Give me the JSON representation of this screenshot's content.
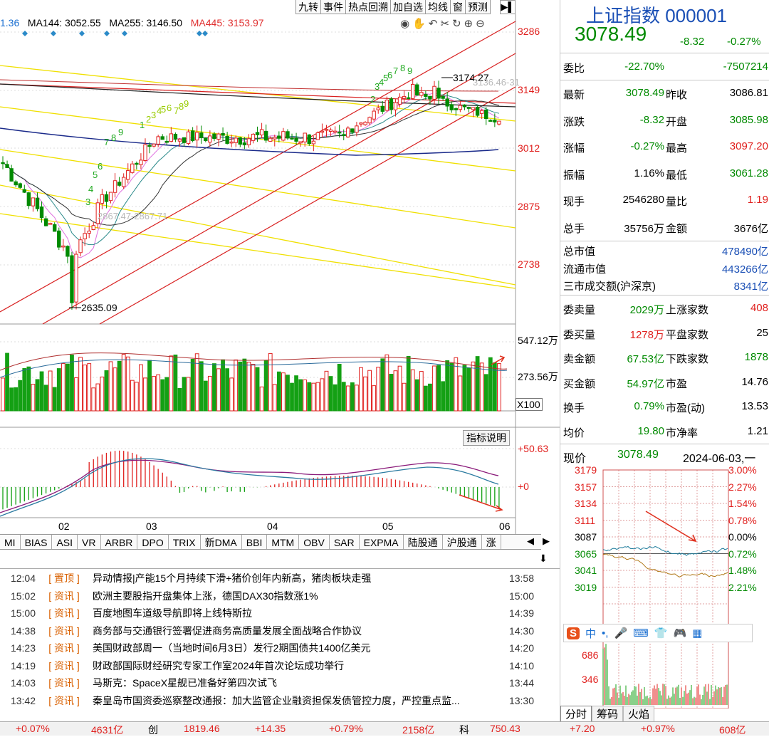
{
  "toolbar": {
    "buttons": [
      "九转",
      "事件",
      "热点回溯",
      "加自选",
      "均线",
      "窗",
      "预测"
    ]
  },
  "ma": {
    "ma_partial": "1.36",
    "ma144": "MA144: 3052.55",
    "ma255": "MA255: 3146.50",
    "ma445": "MA445: 3153.97"
  },
  "price_axis": [
    "3286",
    "3149",
    "3012",
    "2875",
    "2738"
  ],
  "annotations": {
    "high": "3174.27",
    "low": "2635.09",
    "gap1": "2867.47-2867.71",
    "gap2": "3136.46-31"
  },
  "td_numbers_green": [
    "3",
    "4",
    "5",
    "6",
    "7",
    "8",
    "9",
    "1",
    "2",
    "3",
    "4",
    "5",
    "6",
    "7",
    "8",
    "9",
    "2",
    "3",
    "4",
    "5",
    "6",
    "7",
    "8",
    "9"
  ],
  "volume_axis": {
    "top": "547.12万",
    "mid": "273.56万",
    "unit": "X100"
  },
  "macd": {
    "button": "指标说明",
    "axis_top": "+50.63",
    "axis_zero": "+0"
  },
  "month_labels": [
    "02",
    "03",
    "04",
    "05",
    "06"
  ],
  "tabs": [
    "MI",
    "BIAS",
    "ASI",
    "VR",
    "ARBR",
    "DPO",
    "TRIX",
    "新DMA",
    "BBI",
    "MTM",
    "OBV",
    "SAR",
    "EXPMA",
    "陆股通",
    "沪股通",
    "涨"
  ],
  "news": [
    {
      "t1": "12:04",
      "tag": "置顶",
      "title": "异动情报|产能15个月持续下滑+猪价创年内新高，猪肉板块走强",
      "t2": "13:58"
    },
    {
      "t1": "15:02",
      "tag": "资讯",
      "title": "欧洲主要股指开盘集体上涨，德国DAX30指数涨1%",
      "t2": "15:00"
    },
    {
      "t1": "15:00",
      "tag": "资讯",
      "title": "百度地图车道级导航即将上线特斯拉",
      "t2": "14:39"
    },
    {
      "t1": "14:38",
      "tag": "资讯",
      "title": "商务部与交通银行签署促进商务高质量发展全面战略合作协议",
      "t2": "14:30"
    },
    {
      "t1": "14:23",
      "tag": "资讯",
      "title": "美国财政部周一（当地时间6月3日）发行2期国债共1400亿美元",
      "t2": "14:20"
    },
    {
      "t1": "14:19",
      "tag": "资讯",
      "title": "财政部国际财经研究专家工作室2024年首次论坛成功举行",
      "t2": "14:10"
    },
    {
      "t1": "14:03",
      "tag": "资讯",
      "title": "马斯克：SpaceX星舰已准备好第四次试飞",
      "t2": "13:44"
    },
    {
      "t1": "13:42",
      "tag": "资讯",
      "title": "秦皇岛市国资委巡察整改通报：加大监管企业融资担保发债管控力度，严控重点监...",
      "t2": "13:30"
    }
  ],
  "quote": {
    "title": "上证指数 000001",
    "price": "3078.49",
    "change": "-8.32",
    "change_pct": "-0.27%",
    "weibi_label": "委比",
    "weibi": "-22.70%",
    "weicha": "-7507214",
    "rows": [
      {
        "l1": "最新",
        "v1": "3078.49",
        "l2": "昨收",
        "v2": "3086.81"
      },
      {
        "l1": "涨跌",
        "v1": "-8.32",
        "l2": "开盘",
        "v2": "3085.98"
      },
      {
        "l1": "涨幅",
        "v1": "-0.27%",
        "l2": "最高",
        "v2": "3097.20"
      },
      {
        "l1": "振幅",
        "v1": "1.16%",
        "l2": "最低",
        "v2": "3061.28"
      },
      {
        "l1": "现手",
        "v1": "2546280",
        "l2": "量比",
        "v2": "1.19"
      },
      {
        "l1": "总手",
        "v1": "35756万",
        "l2": "金额",
        "v2": "3676亿"
      }
    ],
    "cap": [
      {
        "l": "总市值",
        "v": "478490亿"
      },
      {
        "l": "流通市值",
        "v": "443266亿"
      },
      {
        "l": "三市成交额(沪深京)",
        "v": "8341亿"
      }
    ],
    "book": [
      {
        "l1": "委卖量",
        "v1": "2029万",
        "l2": "上涨家数",
        "v2": "408"
      },
      {
        "l1": "委买量",
        "v1": "1278万",
        "l2": "平盘家数",
        "v2": "25"
      },
      {
        "l1": "卖金额",
        "v1": "67.53亿",
        "l2": "下跌家数",
        "v2": "1878"
      },
      {
        "l1": "买金额",
        "v1": "54.97亿",
        "l2": "市盈",
        "v2": "14.76"
      },
      {
        "l1": "换手",
        "v1": "0.79%",
        "l2": "市盈(动)",
        "v2": "13.53"
      },
      {
        "l1": "均价",
        "v1": "19.80",
        "l2": "市净率",
        "v2": "1.21"
      }
    ]
  },
  "intraday": {
    "now_label": "现价",
    "now": "3078.49",
    "date": "2024-06-03,一",
    "left_axis": [
      "3179",
      "3157",
      "3134",
      "3111",
      "3087",
      "3065",
      "3041",
      "3019"
    ],
    "right_axis": [
      "3.00%",
      "2.27%",
      "1.54%",
      "0.78%",
      "0.00%",
      "0.72%",
      "1.48%",
      "2.21%"
    ],
    "vol_axis": [
      "686",
      "346"
    ],
    "tabs": [
      "分时",
      "筹码",
      "火焰"
    ],
    "ime": "中"
  },
  "status": {
    "s1": "+0.07%",
    "s2": "4631亿",
    "s3": "创",
    "s4": "1819.46",
    "s5": "+14.35",
    "s6": "+0.79%",
    "s7": "2158亿",
    "s8": "科",
    "s9": "750.43",
    "s10": "+7.20",
    "s11": "+0.97%",
    "s12": "608亿"
  },
  "colors": {
    "up": "#e0201e",
    "down": "#008a00",
    "ma_yellow": "#f0e000",
    "ma_red": "#e03030"
  }
}
